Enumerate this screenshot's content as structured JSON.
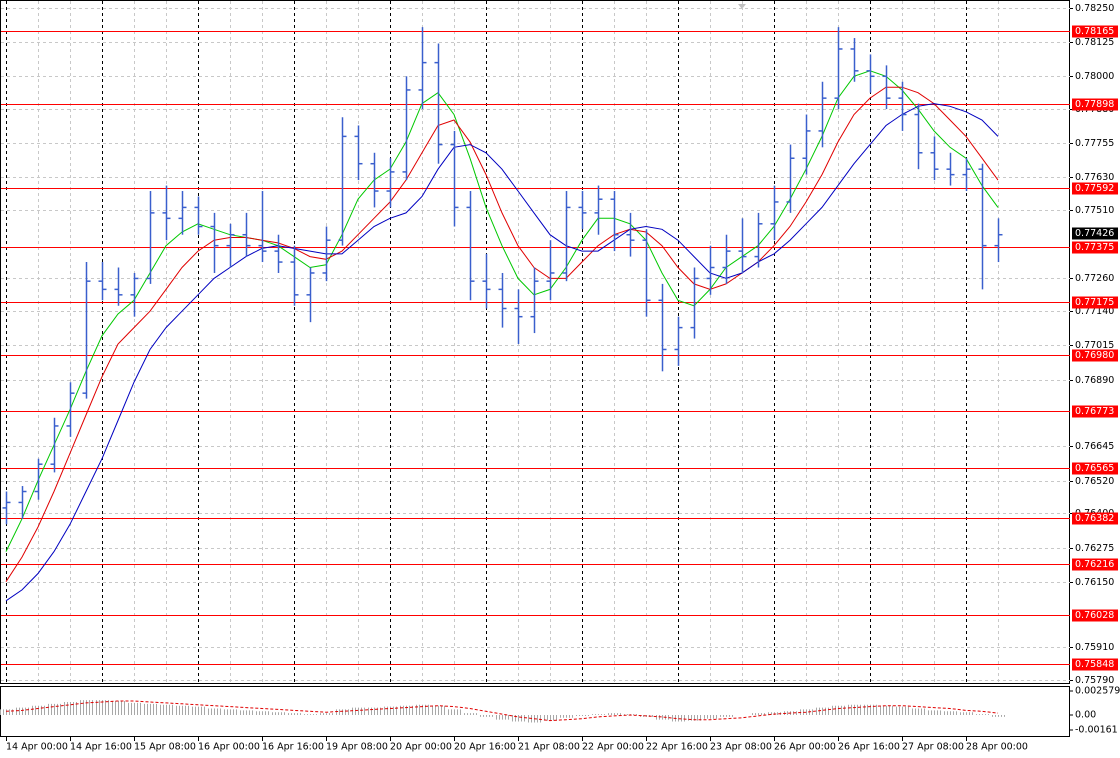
{
  "chart_data": [
    {
      "type": "ohlc",
      "color": "#3a5fcd",
      "x_labels": [
        "14 Apr 00:00",
        "14 Apr 16:00",
        "15 Apr 08:00",
        "16 Apr 00:00",
        "16 Apr 16:00",
        "19 Apr 08:00",
        "20 Apr 00:00",
        "20 Apr 16:00",
        "21 Apr 08:00",
        "22 Apr 00:00",
        "22 Apr 16:00",
        "23 Apr 08:00",
        "26 Apr 00:00",
        "26 Apr 16:00",
        "27 Apr 08:00",
        "28 Apr 00:00"
      ],
      "open": [
        0.7642,
        0.7644,
        0.7648,
        0.7658,
        0.7672,
        0.7684,
        0.7725,
        0.7722,
        0.772,
        0.7726,
        0.775,
        0.7748,
        0.7752,
        0.7745,
        0.7738,
        0.7742,
        0.7738,
        0.7736,
        0.7732,
        0.772,
        0.7728,
        0.774,
        0.7778,
        0.7768,
        0.7758,
        0.7765,
        0.7795,
        0.7805,
        0.7775,
        0.7752,
        0.7725,
        0.7722,
        0.7715,
        0.7712,
        0.7725,
        0.7728,
        0.7752,
        0.775,
        0.7755,
        0.7742,
        0.774,
        0.7718,
        0.77,
        0.7708,
        0.7726,
        0.773,
        0.7736,
        0.7734,
        0.7746,
        0.7754,
        0.777,
        0.778,
        0.7792,
        0.781,
        0.7802,
        0.78,
        0.7792,
        0.7786,
        0.7772,
        0.7766,
        0.7764,
        0.7766,
        0.7738
      ],
      "high": [
        0.7648,
        0.765,
        0.766,
        0.7675,
        0.7688,
        0.7732,
        0.7732,
        0.773,
        0.7728,
        0.7758,
        0.776,
        0.7758,
        0.7756,
        0.775,
        0.7746,
        0.775,
        0.7758,
        0.7742,
        0.7738,
        0.773,
        0.7745,
        0.7785,
        0.7782,
        0.7772,
        0.777,
        0.78,
        0.7818,
        0.7812,
        0.778,
        0.7758,
        0.7735,
        0.7728,
        0.7722,
        0.773,
        0.774,
        0.7758,
        0.7758,
        0.776,
        0.7758,
        0.775,
        0.7744,
        0.7724,
        0.7712,
        0.773,
        0.7738,
        0.7742,
        0.7748,
        0.775,
        0.776,
        0.7775,
        0.7786,
        0.7798,
        0.7818,
        0.7814,
        0.7808,
        0.7804,
        0.7798,
        0.779,
        0.7778,
        0.7772,
        0.777,
        0.7768,
        0.7748
      ],
      "low": [
        0.7636,
        0.7638,
        0.7645,
        0.7655,
        0.7668,
        0.7682,
        0.7718,
        0.7716,
        0.7712,
        0.7724,
        0.774,
        0.7742,
        0.7742,
        0.7728,
        0.773,
        0.7734,
        0.7732,
        0.7728,
        0.7716,
        0.771,
        0.7725,
        0.7738,
        0.7762,
        0.7752,
        0.7752,
        0.7762,
        0.7788,
        0.7768,
        0.7745,
        0.7718,
        0.7715,
        0.7708,
        0.7702,
        0.7706,
        0.7718,
        0.7725,
        0.7744,
        0.7742,
        0.7736,
        0.7734,
        0.7712,
        0.7692,
        0.7694,
        0.7704,
        0.772,
        0.7724,
        0.7728,
        0.773,
        0.774,
        0.775,
        0.7764,
        0.7774,
        0.7788,
        0.7798,
        0.7794,
        0.7788,
        0.778,
        0.7766,
        0.7762,
        0.776,
        0.7758,
        0.7722,
        0.7732
      ],
      "close": [
        0.7644,
        0.7648,
        0.7658,
        0.7672,
        0.7684,
        0.7725,
        0.7722,
        0.772,
        0.7726,
        0.775,
        0.7748,
        0.7752,
        0.7745,
        0.7738,
        0.7742,
        0.7738,
        0.7736,
        0.7732,
        0.772,
        0.7728,
        0.774,
        0.7778,
        0.7768,
        0.7758,
        0.7765,
        0.7795,
        0.7805,
        0.7775,
        0.7752,
        0.7725,
        0.7722,
        0.7715,
        0.7712,
        0.7725,
        0.7728,
        0.7752,
        0.775,
        0.7755,
        0.7742,
        0.774,
        0.7718,
        0.77,
        0.7708,
        0.7726,
        0.773,
        0.7736,
        0.7734,
        0.7746,
        0.7754,
        0.777,
        0.778,
        0.7792,
        0.781,
        0.7802,
        0.78,
        0.7792,
        0.7786,
        0.7772,
        0.7766,
        0.7764,
        0.7766,
        0.7738,
        0.7742
      ],
      "moving_averages": [
        {
          "color": "#00c800",
          "values": [
            0.7626,
            0.7638,
            0.7652,
            0.7665,
            0.7678,
            0.7692,
            0.7705,
            0.7713,
            0.7718,
            0.7728,
            0.7738,
            0.7743,
            0.7746,
            0.7744,
            0.7742,
            0.7741,
            0.774,
            0.7738,
            0.7734,
            0.773,
            0.7731,
            0.7742,
            0.7755,
            0.7762,
            0.7766,
            0.7776,
            0.779,
            0.7794,
            0.7786,
            0.777,
            0.7752,
            0.7738,
            0.7726,
            0.772,
            0.7722,
            0.773,
            0.774,
            0.7748,
            0.7748,
            0.7746,
            0.774,
            0.7728,
            0.7718,
            0.7716,
            0.7722,
            0.773,
            0.7734,
            0.7738,
            0.7745,
            0.7755,
            0.7766,
            0.7778,
            0.7792,
            0.78,
            0.7802,
            0.78,
            0.7795,
            0.7788,
            0.778,
            0.7774,
            0.777,
            0.776,
            0.7752
          ]
        },
        {
          "color": "#e00000",
          "values": [
            0.7615,
            0.7624,
            0.7635,
            0.7648,
            0.7662,
            0.7676,
            0.769,
            0.7702,
            0.7708,
            0.7714,
            0.7722,
            0.773,
            0.7736,
            0.774,
            0.7741,
            0.7741,
            0.774,
            0.7739,
            0.7737,
            0.7734,
            0.7733,
            0.7736,
            0.7742,
            0.7748,
            0.7754,
            0.7762,
            0.7772,
            0.7782,
            0.7784,
            0.7776,
            0.7764,
            0.775,
            0.7738,
            0.773,
            0.7726,
            0.7726,
            0.7732,
            0.7738,
            0.7742,
            0.7744,
            0.7743,
            0.7738,
            0.773,
            0.7724,
            0.7722,
            0.7724,
            0.7728,
            0.7732,
            0.7738,
            0.7745,
            0.7754,
            0.7764,
            0.7776,
            0.7786,
            0.7792,
            0.7796,
            0.7796,
            0.7794,
            0.779,
            0.7784,
            0.7778,
            0.777,
            0.7762
          ]
        },
        {
          "color": "#0000c0",
          "values": [
            0.7608,
            0.7612,
            0.7618,
            0.7626,
            0.7636,
            0.7648,
            0.766,
            0.7674,
            0.7688,
            0.77,
            0.7708,
            0.7714,
            0.772,
            0.7726,
            0.773,
            0.7734,
            0.7737,
            0.7738,
            0.7737,
            0.7736,
            0.7735,
            0.7735,
            0.774,
            0.7745,
            0.7748,
            0.775,
            0.7756,
            0.7766,
            0.7774,
            0.7775,
            0.7772,
            0.7766,
            0.7758,
            0.775,
            0.7742,
            0.7738,
            0.7736,
            0.7736,
            0.774,
            0.7744,
            0.7745,
            0.7744,
            0.774,
            0.7734,
            0.7728,
            0.7726,
            0.7728,
            0.7732,
            0.7735,
            0.774,
            0.7746,
            0.7752,
            0.776,
            0.7768,
            0.7775,
            0.7782,
            0.7786,
            0.7789,
            0.779,
            0.7789,
            0.7787,
            0.7784,
            0.7778
          ]
        }
      ],
      "levels": [
        0.78165,
        0.77898,
        0.77592,
        0.77375,
        0.77175,
        {
          "value": 0.7698,
          "label": "0.76980"
        },
        0.76773,
        0.76565,
        0.76382,
        0.76216,
        0.76028,
        0.75848
      ],
      "level_color": "#ff0000",
      "current_price": 0.77426,
      "ylim": [
        0.7579,
        0.7825
      ],
      "yticks": [
        {
          "value": 0.7825,
          "label": "0.78250"
        },
        0.78125,
        {
          "value": 0.78,
          "label": "0.78000"
        },
        {
          "value": 0.7788,
          "label": "0.77880"
        },
        0.77755,
        {
          "value": 0.7763,
          "label": "0.77630"
        },
        {
          "value": 0.7751,
          "label": "0.77510"
        },
        {
          "value": 0.7726,
          "label": "0.77260"
        },
        {
          "value": 0.7714,
          "label": "0.77140"
        },
        0.77015,
        {
          "value": 0.7689,
          "label": "0.76890"
        },
        0.76645,
        {
          "value": 0.7652,
          "label": "0.76520"
        },
        {
          "value": 0.764,
          "label": "0.76400"
        },
        0.76275,
        {
          "value": 0.7615,
          "label": "0.76150"
        },
        {
          "value": 0.7591,
          "label": "0.75910"
        },
        {
          "value": 0.7579,
          "label": "0.75790"
        }
      ],
      "grid": true
    },
    {
      "type": "oscillator",
      "series": [
        {
          "color": "#a8a8a8",
          "values": [
            0.0006,
            0.0008,
            0.001,
            0.0012,
            0.0014,
            0.0016,
            0.0016,
            0.0015,
            0.0013,
            0.0012,
            0.0011,
            0.001,
            0.0009,
            0.0007,
            0.0006,
            0.0005,
            0.0004,
            0.0003,
            0.0002,
            0.0001,
            0.0002,
            0.0006,
            0.0008,
            0.0008,
            0.0009,
            0.001,
            0.0011,
            0.001,
            0.0006,
            0.0002,
            -0.0002,
            -0.0005,
            -0.0007,
            -0.0008,
            -0.0006,
            -0.0003,
            -0.0001,
            0.0001,
            0.0002,
            0.0001,
            -0.0002,
            -0.0005,
            -0.0007,
            -0.0006,
            -0.0004,
            -0.0002,
            0,
            0.0002,
            0.0003,
            0.0004,
            0.0006,
            0.0008,
            0.001,
            0.0011,
            0.0011,
            0.001,
            0.0009,
            0.0007,
            0.0005,
            0.0004,
            0.0003,
            0.0001,
            -0.0002
          ]
        },
        {
          "color": "#e00000",
          "values": [
            0.0004,
            0.0005,
            0.0007,
            0.0009,
            0.0011,
            0.0013,
            0.0014,
            0.0015,
            0.0015,
            0.0014,
            0.0013,
            0.0012,
            0.0011,
            0.001,
            0.0009,
            0.0008,
            0.0007,
            0.0006,
            0.0005,
            0.0004,
            0.0003,
            0.0004,
            0.0005,
            0.0006,
            0.0007,
            0.0008,
            0.0009,
            0.001,
            0.0009,
            0.0007,
            0.0004,
            0.0001,
            -0.0002,
            -0.0004,
            -0.0006,
            -0.0005,
            -0.0004,
            -0.0002,
            -0.0001,
            0,
            -0.0001,
            -0.0002,
            -0.0004,
            -0.0005,
            -0.0005,
            -0.0004,
            -0.0003,
            -0.0001,
            0.0001,
            0.0002,
            0.0003,
            0.0005,
            0.0007,
            0.0008,
            0.0009,
            0.001,
            0.001,
            0.0009,
            0.0008,
            0.0007,
            0.0005,
            0.0004,
            0.0002
          ]
        }
      ],
      "ylim": [
        -0.00161,
        0.002579
      ],
      "yticks": [
        0.002579,
        {
          "value": 0,
          "label": "0.00"
        },
        -0.00161
      ]
    }
  ]
}
